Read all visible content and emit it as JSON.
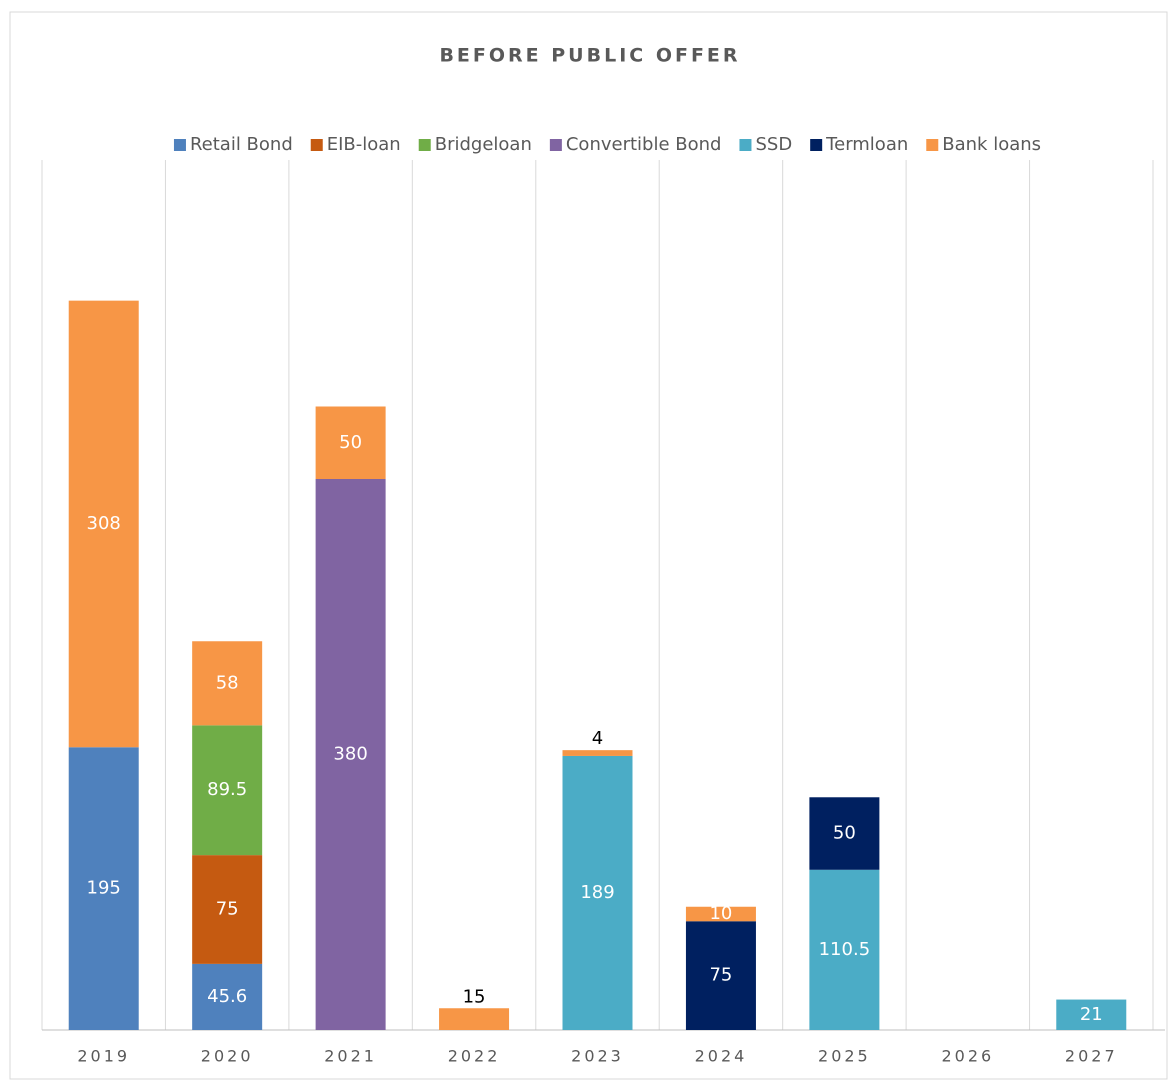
{
  "chart_data": {
    "type": "stacked-bar",
    "title": "BEFORE PUBLIC OFFER",
    "categories": [
      "2019",
      "2020",
      "2021",
      "2022",
      "2023",
      "2024",
      "2025",
      "2026",
      "2027"
    ],
    "series": [
      {
        "name": "Retail Bond",
        "color": "#4f81bd",
        "values": [
          195,
          45.6,
          null,
          null,
          null,
          null,
          null,
          null,
          null
        ]
      },
      {
        "name": "EIB-loan",
        "color": "#c55a11",
        "values": [
          null,
          75,
          null,
          null,
          null,
          null,
          null,
          null,
          null
        ]
      },
      {
        "name": "Bridgeloan",
        "color": "#70ad47",
        "values": [
          null,
          89.5,
          null,
          null,
          null,
          null,
          null,
          null,
          null
        ]
      },
      {
        "name": "Convertible Bond",
        "color": "#8064a2",
        "values": [
          null,
          null,
          380,
          null,
          null,
          null,
          null,
          null,
          null
        ]
      },
      {
        "name": "SSD",
        "color": "#4bacc6",
        "values": [
          null,
          null,
          null,
          null,
          189,
          null,
          110.5,
          null,
          21
        ]
      },
      {
        "name": "Termloan",
        "color": "#002060",
        "values": [
          null,
          null,
          null,
          null,
          null,
          75,
          50,
          null,
          null
        ]
      },
      {
        "name": "Bank loans",
        "color": "#f79646",
        "values": [
          308,
          58,
          50,
          15,
          4,
          10,
          null,
          null,
          null
        ]
      }
    ],
    "ylim": [
      0,
      600
    ],
    "legend": "top"
  }
}
